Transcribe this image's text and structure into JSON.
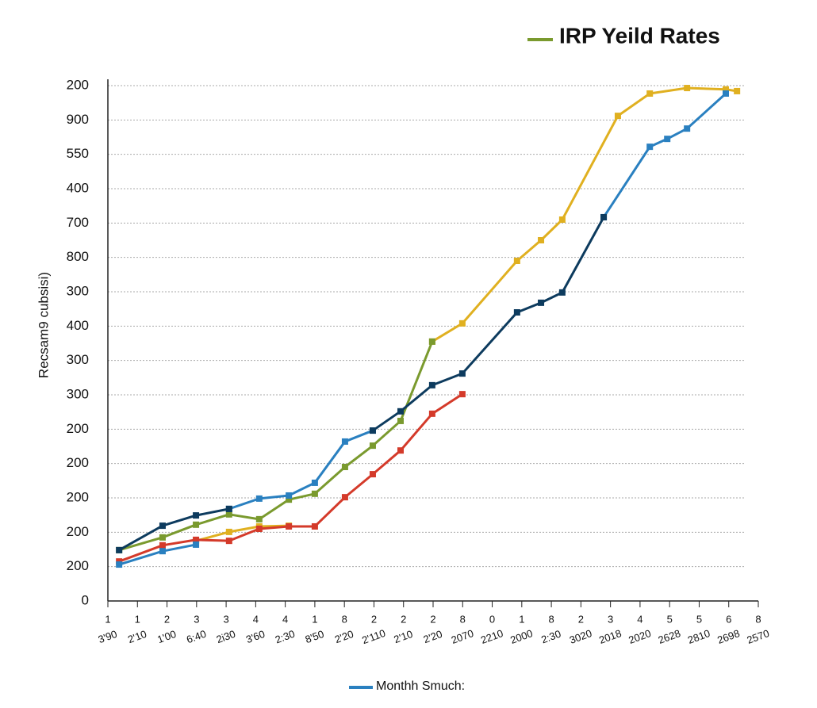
{
  "chart_data": {
    "type": "line",
    "title": "IRP Yeild Rates",
    "y_label": "Recsam9 cubsisi)",
    "xlim": [
      0,
      22
    ],
    "xticks": [
      {
        "value": 0,
        "label": "1"
      },
      {
        "value": 1,
        "label": "1"
      },
      {
        "value": 2,
        "label": "2"
      },
      {
        "value": 3,
        "label": "3"
      },
      {
        "value": 4,
        "label": "3"
      },
      {
        "value": 5,
        "label": "4"
      },
      {
        "value": 6,
        "label": "4"
      },
      {
        "value": 7,
        "label": "1"
      },
      {
        "value": 8,
        "label": "8"
      },
      {
        "value": 9,
        "label": "2"
      },
      {
        "value": 10,
        "label": "2"
      },
      {
        "value": 11,
        "label": "2"
      },
      {
        "value": 12,
        "label": "8"
      },
      {
        "value": 13,
        "label": "0"
      },
      {
        "value": 14,
        "label": "1"
      },
      {
        "value": 15,
        "label": "8"
      },
      {
        "value": 16,
        "label": "2"
      },
      {
        "value": 17,
        "label": "3"
      },
      {
        "value": 18,
        "label": "4"
      },
      {
        "value": 19,
        "label": "5"
      },
      {
        "value": 20,
        "label": "5"
      },
      {
        "value": 21,
        "label": "6"
      },
      {
        "value": 22,
        "label": "8"
      }
    ],
    "xtick_sublabels": [
      "3'90",
      "2'10",
      "1'00",
      "6:40",
      "2i30",
      "3'60",
      "2:30",
      "8'50",
      "2'20",
      "2'110",
      "2'10",
      "2'20",
      "2070",
      "2210",
      "2000",
      "2:30",
      "3020",
      "2018",
      "2020",
      "2628",
      "2810",
      "2698",
      "2570"
    ],
    "ylim": [
      0,
      15
    ],
    "yticks": [
      0,
      {
        "value": 1,
        "label": "200"
      },
      {
        "value": 2,
        "label": "200"
      },
      {
        "value": 3,
        "label": "200"
      },
      {
        "value": 4,
        "label": "200"
      },
      {
        "value": 5,
        "label": "200"
      },
      {
        "value": 6,
        "label": "300"
      },
      {
        "value": 7,
        "label": "300"
      },
      {
        "value": 8,
        "label": "400"
      },
      {
        "value": 9,
        "label": "300"
      },
      {
        "value": 10,
        "label": "800"
      },
      {
        "value": 11,
        "label": "700"
      },
      {
        "value": 12,
        "label": "400"
      },
      {
        "value": 13,
        "label": "550"
      },
      {
        "value": 14,
        "label": "900"
      },
      {
        "value": 15,
        "label": "200"
      }
    ],
    "grid": true,
    "series": [
      {
        "color": "#e0b020",
        "x": [
          2.98,
          4.1,
          5.12,
          6.12,
          null,
          10.97,
          11.99,
          13.84,
          14.65,
          15.37,
          17.25,
          18.33,
          19.59,
          20.9,
          21.28
        ],
        "values": [
          1.75,
          2.01,
          2.17,
          2.19,
          null,
          7.55,
          8.08,
          9.9,
          10.5,
          11.1,
          14.12,
          14.77,
          14.93,
          14.89,
          14.84
        ]
      },
      {
        "color": "#d43a2a",
        "x": [
          0.38,
          1.85,
          2.98,
          4.1,
          5.12,
          6.12,
          7.0,
          8.02,
          8.96,
          9.9,
          10.97,
          11.99
        ],
        "values": [
          1.15,
          1.62,
          1.78,
          1.75,
          2.1,
          2.17,
          2.17,
          3.02,
          3.69,
          4.38,
          5.45,
          6.02
        ]
      },
      {
        "name": "IRP Yeild Rates",
        "color": "#7a9a2e",
        "x": [
          0.38,
          1.85,
          2.98,
          4.1,
          5.12,
          6.12,
          7.0,
          8.02,
          8.96,
          9.9,
          10.97
        ],
        "values": [
          1.48,
          1.85,
          2.22,
          2.52,
          2.38,
          2.95,
          3.12,
          3.9,
          4.52,
          5.24,
          7.55
        ]
      },
      {
        "name": "Monthh Smuch:",
        "color": "#2a80c0",
        "x": [
          0.38,
          1.85,
          2.98,
          null,
          4.1,
          5.12,
          6.12,
          7.0,
          8.02,
          8.96,
          null,
          16.77,
          18.33,
          18.92,
          19.59,
          20.9
        ],
        "values": [
          1.06,
          1.45,
          1.64,
          null,
          2.68,
          2.98,
          3.07,
          3.44,
          4.64,
          4.96,
          null,
          11.17,
          13.22,
          13.45,
          13.75,
          14.77
        ]
      },
      {
        "color": "#0d3b5e",
        "x": [
          0.38,
          1.85,
          2.98,
          4.1,
          null,
          8.96,
          9.9,
          10.97,
          11.99,
          13.84,
          14.65,
          15.37,
          16.77
        ],
        "values": [
          1.48,
          2.19,
          2.49,
          2.68,
          null,
          4.96,
          5.52,
          6.28,
          6.62,
          8.4,
          8.68,
          8.98,
          11.17
        ]
      }
    ]
  }
}
